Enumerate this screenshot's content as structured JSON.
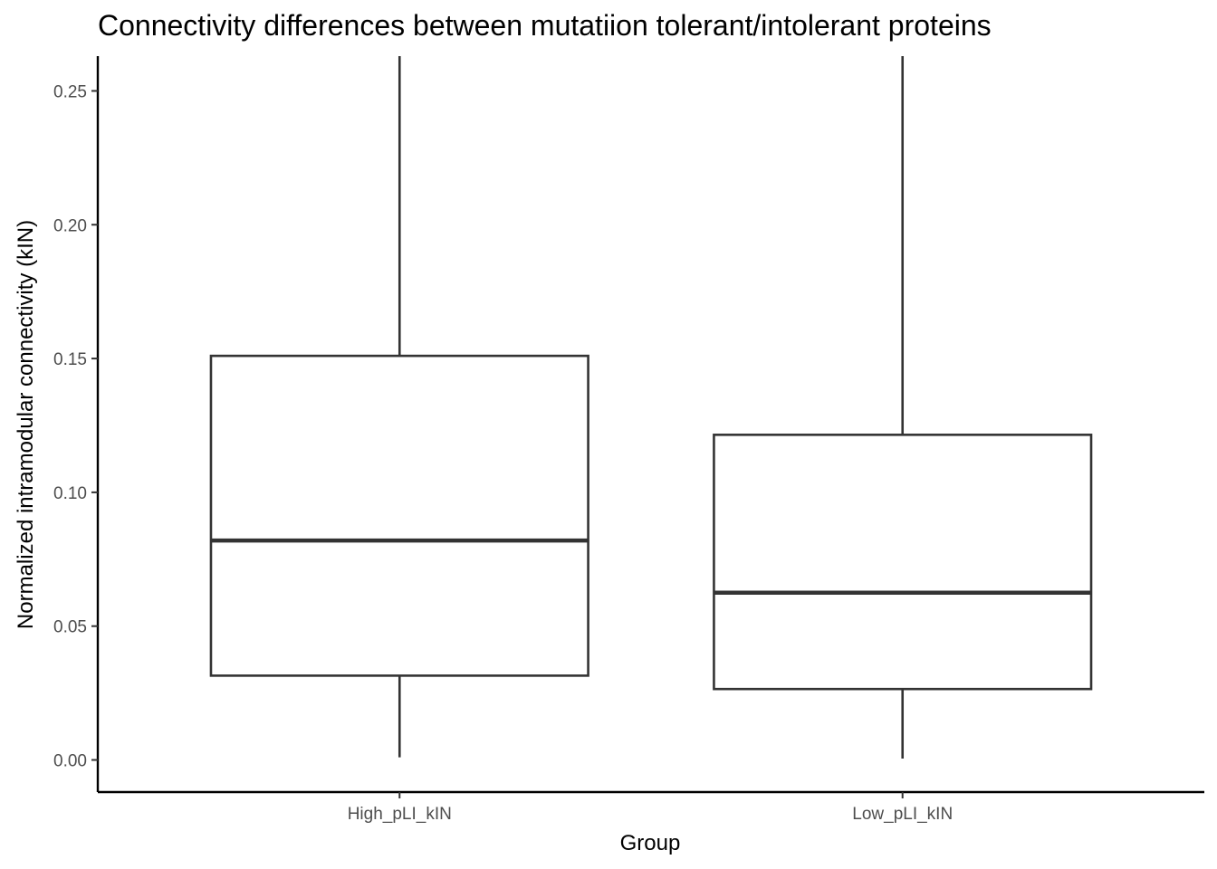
{
  "chart_data": {
    "type": "boxplot",
    "title": "Connectivity differences between mutatiion tolerant/intolerant proteins",
    "xlabel": "Group",
    "ylabel": "Normalized intramodular connectivity (kIN)",
    "categories": [
      "High_pLI_kIN",
      "Low_pLI_kIN"
    ],
    "boxes": [
      {
        "category": "High_pLI_kIN",
        "whisker_low": 0.001,
        "q1": 0.0315,
        "median": 0.082,
        "q3": 0.151,
        "whisker_high": 0.263
      },
      {
        "category": "Low_pLI_kIN",
        "whisker_low": 0.0005,
        "q1": 0.0265,
        "median": 0.0625,
        "q3": 0.1215,
        "whisker_high": 0.263
      }
    ],
    "ylim": [
      -0.012,
      0.263
    ],
    "yticks": [
      0.0,
      0.05,
      0.1,
      0.15,
      0.2,
      0.25
    ],
    "ytick_labels": [
      "0.00",
      "0.05",
      "0.10",
      "0.15",
      "0.20",
      "0.25"
    ],
    "grid": false,
    "legend": "none",
    "colors": {
      "box_stroke": "#333333",
      "box_fill": "#ffffff",
      "axis": "#000000",
      "tick_text": "#4d4d4d"
    }
  }
}
